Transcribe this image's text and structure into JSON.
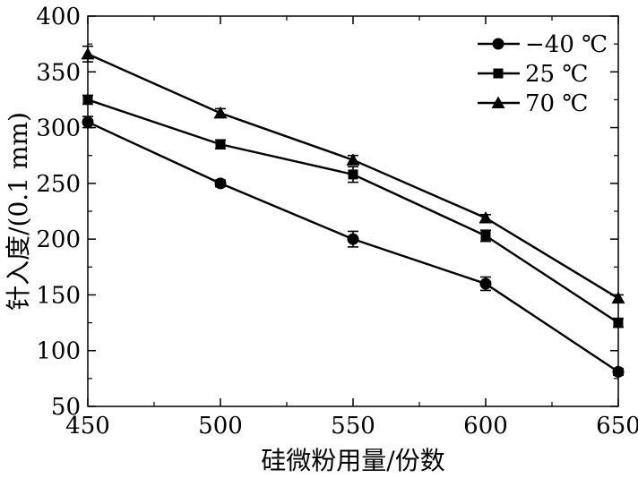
{
  "chart_data": {
    "type": "line",
    "title": "",
    "xlabel": "硅微粉用量/份数",
    "ylabel": "针入度/(0.1 mm)",
    "xlim": [
      450,
      650
    ],
    "ylim": [
      50,
      400
    ],
    "x": [
      450,
      500,
      550,
      600,
      650
    ],
    "x_ticks": [
      "450",
      "500",
      "550",
      "600",
      "650"
    ],
    "y_ticks": [
      "50",
      "100",
      "150",
      "200",
      "250",
      "300",
      "350",
      "400"
    ],
    "grid": false,
    "legend_position": "top-right",
    "error_bars": true,
    "series": [
      {
        "name": "−40 ℃",
        "marker": "circle",
        "values": [
          305,
          250,
          200,
          160,
          81
        ],
        "errors": [
          5,
          3,
          7,
          6,
          3
        ]
      },
      {
        "name": "25 ℃",
        "marker": "square",
        "values": [
          325,
          285,
          258,
          203,
          125
        ],
        "errors": [
          4,
          4,
          7,
          5,
          4
        ]
      },
      {
        "name": "70 ℃",
        "marker": "triangle",
        "values": [
          366,
          313,
          271,
          219,
          147
        ],
        "errors": [
          7,
          4,
          4,
          3,
          3
        ]
      }
    ]
  }
}
